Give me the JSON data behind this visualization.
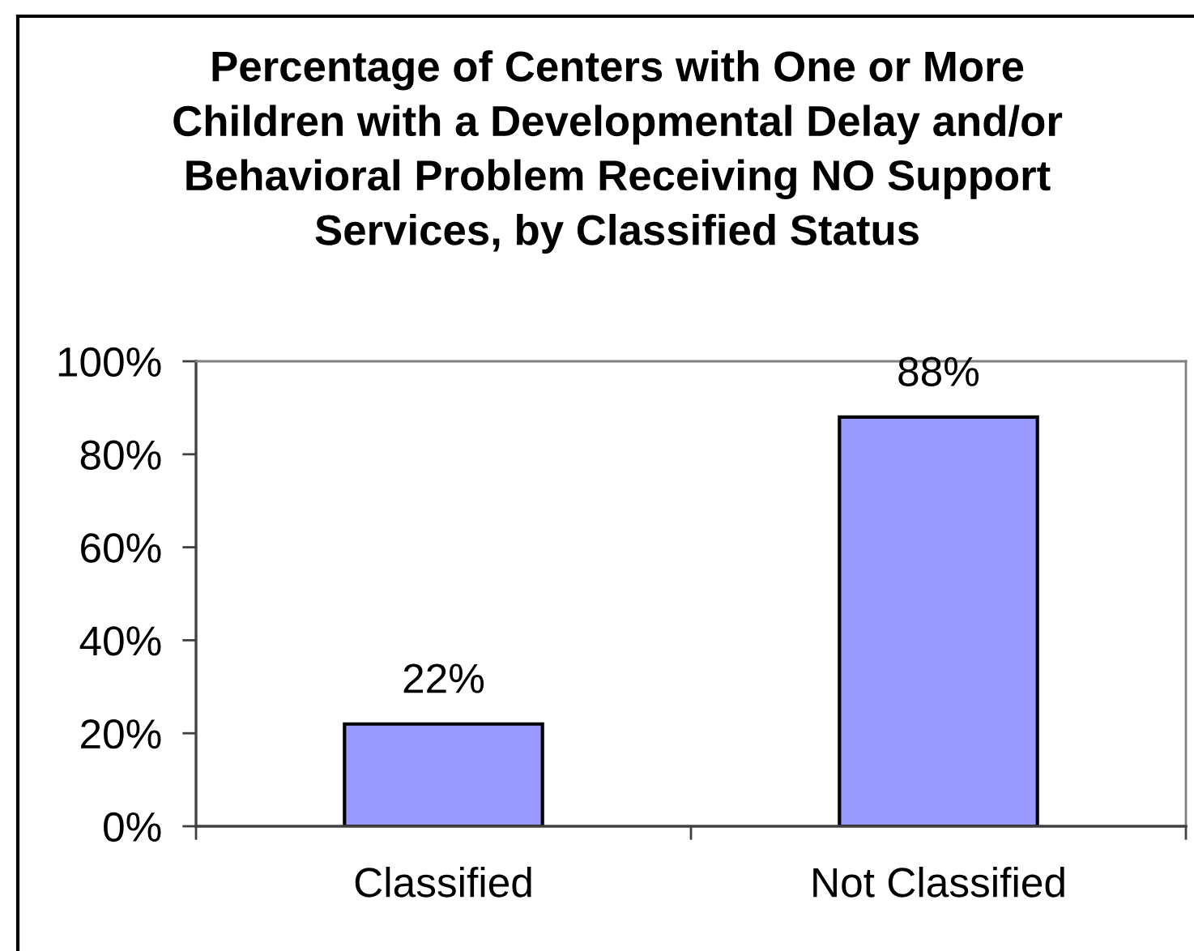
{
  "chart_data": {
    "type": "bar",
    "title": "Percentage of Centers with One or More\nChildren with a Developmental Delay and/or\nBehavioral Problem Receiving NO Support\nServices, by Classified Status",
    "categories": [
      "Classified",
      "Not Classified"
    ],
    "values": [
      22,
      88
    ],
    "color": "#9999ff",
    "data_labels": true,
    "value_labels": [
      "22%",
      "88%"
    ],
    "ylim": [
      0,
      100
    ],
    "yticks": [
      {
        "value": 0,
        "label": "0%"
      },
      {
        "value": 20,
        "label": "20%"
      },
      {
        "value": 40,
        "label": "40%"
      },
      {
        "value": 60,
        "label": "60%"
      },
      {
        "value": 80,
        "label": "80%"
      },
      {
        "value": 100,
        "label": "100%"
      }
    ],
    "grid": false,
    "legend": false
  }
}
